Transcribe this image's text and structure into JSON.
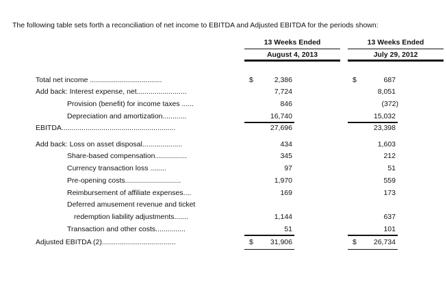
{
  "intro": "The following table sets forth a reconciliation of net income to EBITDA and Adjusted EBITDA for the periods shown:",
  "columns": [
    {
      "heading": "13 Weeks Ended",
      "date": "August 4, 2013"
    },
    {
      "heading": "13 Weeks Ended",
      "date": "July 29, 2012"
    }
  ],
  "rows": [
    {
      "label": "Total net income ....................................",
      "c1_dollar": "$",
      "c1": "2,386",
      "c2_dollar": "$",
      "c2": "687"
    },
    {
      "label": "Add back:  Interest expense, net.........................",
      "c1": "7,724",
      "c2": "8,051"
    },
    {
      "label": "Provision (benefit) for income taxes ......",
      "c1": "846",
      "c2": "(372)"
    },
    {
      "label": "Depreciation and amortization............",
      "c1": "16,740",
      "c2": "15,032"
    },
    {
      "label": "EBITDA.........................................................",
      "c1": "27,696",
      "c2": "23,398"
    },
    {
      "label": "Add back:  Loss on asset disposal....................",
      "c1": "434",
      "c2": "1,603"
    },
    {
      "label": "Share-based compensation................",
      "c1": "345",
      "c2": "212"
    },
    {
      "label": "Currency transaction loss ........",
      "c1": "97",
      "c2": "51"
    },
    {
      "label": "Pre-opening costs............................",
      "c1": "1,970",
      "c2": "559"
    },
    {
      "label": "Reimbursement of affiliate expenses....",
      "c1": "169",
      "c2": "173"
    },
    {
      "label": "Deferred amusement revenue and ticket"
    },
    {
      "label": "redemption liability adjustments.......",
      "c1": "1,144",
      "c2": "637"
    },
    {
      "label": "Transaction and other costs...............",
      "c1": "51",
      "c2": "101"
    },
    {
      "label": "Adjusted EBITDA (2).....................................",
      "c1_dollar": "$",
      "c1": "31,906",
      "c2_dollar": "$",
      "c2": "26,734"
    }
  ]
}
